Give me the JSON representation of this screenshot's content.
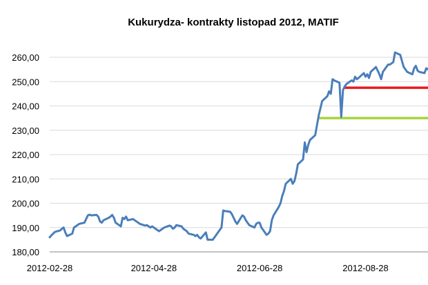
{
  "chart_data": {
    "type": "line",
    "title": "Kukurydza- kontrakty listopad 2012, MATIF",
    "xlabel": "",
    "ylabel": "",
    "ylim": [
      180,
      260
    ],
    "y_ticks": [
      "180,00",
      "190,00",
      "200,00",
      "210,00",
      "220,00",
      "230,00",
      "240,00",
      "250,00",
      "260,00"
    ],
    "x_ticks": [
      "2012-02-28",
      "2012-04-28",
      "2012-06-28",
      "2012-08-28"
    ],
    "grid": "horizontal",
    "legend": "none",
    "series": [
      {
        "color": "#4a7ebb",
        "points": [
          [
            "2012-02-28",
            186.0
          ],
          [
            "2012-02-29",
            186.8
          ],
          [
            "2012-03-01",
            187.5
          ],
          [
            "2012-03-02",
            188.2
          ],
          [
            "2012-03-05",
            188.8
          ],
          [
            "2012-03-06",
            189.5
          ],
          [
            "2012-03-07",
            190.0
          ],
          [
            "2012-03-08",
            188.0
          ],
          [
            "2012-03-09",
            186.5
          ],
          [
            "2012-03-12",
            187.5
          ],
          [
            "2012-03-13",
            190.0
          ],
          [
            "2012-03-14",
            190.5
          ],
          [
            "2012-03-15",
            191.0
          ],
          [
            "2012-03-16",
            191.5
          ],
          [
            "2012-03-19",
            192.0
          ],
          [
            "2012-03-20",
            193.5
          ],
          [
            "2012-03-21",
            195.0
          ],
          [
            "2012-03-22",
            195.3
          ],
          [
            "2012-03-23",
            195.0
          ],
          [
            "2012-03-26",
            195.2
          ],
          [
            "2012-03-27",
            194.5
          ],
          [
            "2012-03-28",
            192.5
          ],
          [
            "2012-03-29",
            192.0
          ],
          [
            "2012-03-30",
            193.0
          ],
          [
            "2012-04-02",
            194.0
          ],
          [
            "2012-04-03",
            194.5
          ],
          [
            "2012-04-04",
            195.2
          ],
          [
            "2012-04-05",
            194.0
          ],
          [
            "2012-04-06",
            192.0
          ],
          [
            "2012-04-09",
            190.5
          ],
          [
            "2012-04-10",
            194.0
          ],
          [
            "2012-04-11",
            193.5
          ],
          [
            "2012-04-12",
            194.5
          ],
          [
            "2012-04-13",
            193.0
          ],
          [
            "2012-04-16",
            193.5
          ],
          [
            "2012-04-17",
            193.0
          ],
          [
            "2012-04-18",
            192.5
          ],
          [
            "2012-04-19",
            192.0
          ],
          [
            "2012-04-20",
            191.5
          ],
          [
            "2012-04-23",
            190.8
          ],
          [
            "2012-04-24",
            191.0
          ],
          [
            "2012-04-25",
            190.5
          ],
          [
            "2012-04-26",
            190.0
          ],
          [
            "2012-04-27",
            190.5
          ],
          [
            "2012-04-30",
            189.0
          ],
          [
            "2012-05-01",
            188.5
          ],
          [
            "2012-05-02",
            189.0
          ],
          [
            "2012-05-03",
            189.5
          ],
          [
            "2012-05-04",
            190.0
          ],
          [
            "2012-05-07",
            190.8
          ],
          [
            "2012-05-08",
            190.5
          ],
          [
            "2012-05-09",
            189.5
          ],
          [
            "2012-05-10",
            190.0
          ],
          [
            "2012-05-11",
            191.0
          ],
          [
            "2012-05-14",
            190.5
          ],
          [
            "2012-05-15",
            189.5
          ],
          [
            "2012-05-16",
            189.0
          ],
          [
            "2012-05-17",
            188.5
          ],
          [
            "2012-05-18",
            187.5
          ],
          [
            "2012-05-21",
            187.0
          ],
          [
            "2012-05-22",
            186.5
          ],
          [
            "2012-05-23",
            187.0
          ],
          [
            "2012-05-24",
            186.0
          ],
          [
            "2012-05-25",
            185.5
          ],
          [
            "2012-05-28",
            188.0
          ],
          [
            "2012-05-29",
            185.0
          ],
          [
            "2012-05-30",
            185.0
          ],
          [
            "2012-05-31",
            185.0
          ],
          [
            "2012-06-01",
            185.0
          ],
          [
            "2012-06-04",
            188.0
          ],
          [
            "2012-06-05",
            189.0
          ],
          [
            "2012-06-06",
            190.0
          ],
          [
            "2012-06-07",
            197.0
          ],
          [
            "2012-06-08",
            196.8
          ],
          [
            "2012-06-11",
            196.5
          ],
          [
            "2012-06-12",
            195.5
          ],
          [
            "2012-06-13",
            194.0
          ],
          [
            "2012-06-14",
            192.5
          ],
          [
            "2012-06-15",
            191.5
          ],
          [
            "2012-06-18",
            195.0
          ],
          [
            "2012-06-19",
            194.5
          ],
          [
            "2012-06-20",
            193.0
          ],
          [
            "2012-06-21",
            192.0
          ],
          [
            "2012-06-22",
            191.0
          ],
          [
            "2012-06-25",
            190.0
          ],
          [
            "2012-06-26",
            191.5
          ],
          [
            "2012-06-27",
            192.0
          ],
          [
            "2012-06-28",
            192.0
          ],
          [
            "2012-06-29",
            190.0
          ],
          [
            "2012-07-02",
            187.0
          ],
          [
            "2012-07-03",
            187.5
          ],
          [
            "2012-07-04",
            188.5
          ],
          [
            "2012-07-05",
            193.0
          ],
          [
            "2012-07-06",
            195.0
          ],
          [
            "2012-07-09",
            198.5
          ],
          [
            "2012-07-10",
            200.0
          ],
          [
            "2012-07-11",
            203.0
          ],
          [
            "2012-07-12",
            205.0
          ],
          [
            "2012-07-13",
            208.0
          ],
          [
            "2012-07-16",
            210.0
          ],
          [
            "2012-07-17",
            208.0
          ],
          [
            "2012-07-18",
            209.0
          ],
          [
            "2012-07-19",
            212.0
          ],
          [
            "2012-07-20",
            216.0
          ],
          [
            "2012-07-23",
            218.0
          ],
          [
            "2012-07-24",
            225.0
          ],
          [
            "2012-07-25",
            221.0
          ],
          [
            "2012-07-26",
            224.0
          ],
          [
            "2012-07-27",
            226.0
          ],
          [
            "2012-07-30",
            228.0
          ],
          [
            "2012-07-31",
            232.0
          ],
          [
            "2012-08-01",
            236.0
          ],
          [
            "2012-08-02",
            239.0
          ],
          [
            "2012-08-03",
            242.0
          ],
          [
            "2012-08-06",
            244.0
          ],
          [
            "2012-08-07",
            246.0
          ],
          [
            "2012-08-08",
            245.0
          ],
          [
            "2012-08-09",
            251.0
          ],
          [
            "2012-08-10",
            250.5
          ],
          [
            "2012-08-13",
            249.5
          ],
          [
            "2012-08-14",
            235.5
          ],
          [
            "2012-08-15",
            246.5
          ],
          [
            "2012-08-16",
            248.0
          ],
          [
            "2012-08-17",
            249.0
          ],
          [
            "2012-08-20",
            250.5
          ],
          [
            "2012-08-21",
            250.0
          ],
          [
            "2012-08-22",
            252.0
          ],
          [
            "2012-08-23",
            251.0
          ],
          [
            "2012-08-24",
            251.5
          ],
          [
            "2012-08-27",
            253.5
          ],
          [
            "2012-08-28",
            252.0
          ],
          [
            "2012-08-29",
            253.0
          ],
          [
            "2012-08-30",
            251.5
          ],
          [
            "2012-08-31",
            254.0
          ],
          [
            "2012-09-03",
            256.0
          ],
          [
            "2012-09-04",
            254.5
          ],
          [
            "2012-09-05",
            253.0
          ],
          [
            "2012-09-06",
            251.0
          ],
          [
            "2012-09-07",
            254.0
          ],
          [
            "2012-09-10",
            257.0
          ],
          [
            "2012-09-11",
            257.0
          ],
          [
            "2012-09-12",
            257.5
          ],
          [
            "2012-09-13",
            258.0
          ],
          [
            "2012-09-14",
            262.0
          ],
          [
            "2012-09-17",
            261.0
          ],
          [
            "2012-09-18",
            258.5
          ],
          [
            "2012-09-19",
            256.0
          ],
          [
            "2012-09-20",
            255.0
          ],
          [
            "2012-09-21",
            254.0
          ],
          [
            "2012-09-24",
            253.0
          ],
          [
            "2012-09-25",
            255.5
          ],
          [
            "2012-09-26",
            256.5
          ],
          [
            "2012-09-27",
            254.5
          ],
          [
            "2012-09-28",
            254.0
          ],
          [
            "2012-10-01",
            253.5
          ],
          [
            "2012-10-02",
            255.5
          ],
          [
            "2012-10-03",
            255.0
          ]
        ]
      }
    ],
    "reference_lines": [
      {
        "color": "#e8191f",
        "value": 247.5,
        "from": "2012-08-16",
        "to": "2012-10-05"
      },
      {
        "color": "#a6d43a",
        "value": 235.0,
        "from": "2012-08-01",
        "to": "2012-10-05"
      }
    ]
  }
}
